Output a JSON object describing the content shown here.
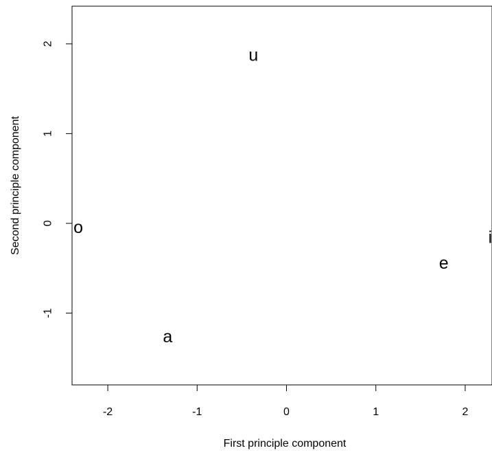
{
  "chart_data": {
    "type": "scatter",
    "title": "",
    "xlabel": "First principle component",
    "ylabel": "Second principle component",
    "xlim": [
      -2.4,
      2.3
    ],
    "ylim": [
      -1.8,
      2.42
    ],
    "grid": false,
    "legend": null,
    "x_ticks": [
      -2,
      -1,
      0,
      1,
      2
    ],
    "x_tick_labels": [
      "-2",
      "-1",
      "0",
      "1",
      "2"
    ],
    "y_ticks": [
      -1,
      0,
      1,
      2
    ],
    "y_tick_labels": [
      "-1",
      "0",
      "1",
      "2"
    ],
    "points": [
      {
        "label": "u",
        "x": -0.37,
        "y": 1.88
      },
      {
        "label": "o",
        "x": -2.33,
        "y": -0.04
      },
      {
        "label": "i",
        "x": 2.28,
        "y": -0.15
      },
      {
        "label": "e",
        "x": 1.76,
        "y": -0.44
      },
      {
        "label": "a",
        "x": -1.33,
        "y": -1.26
      }
    ],
    "colors": {
      "text": "#000000",
      "axis": "#000000",
      "background": "#ffffff"
    }
  }
}
